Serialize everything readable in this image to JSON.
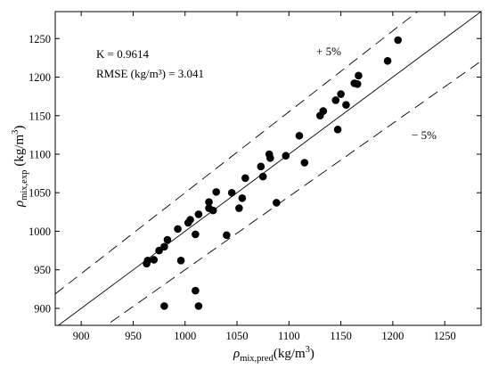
{
  "chart_data": {
    "type": "scatter",
    "x_label": {
      "symbol": "ρ",
      "sub": "mix,pred",
      "unit": "(kg/m",
      "unit_exp": "3",
      "unit_close": ")"
    },
    "y_label": {
      "symbol": "ρ",
      "sub": "mix,exp",
      "unit": "(kg/m",
      "unit_exp": "3",
      "unit_close": ")"
    },
    "xlim": [
      875,
      1285
    ],
    "ylim": [
      878,
      1285
    ],
    "x_ticks": [
      900,
      950,
      1000,
      1050,
      1100,
      1150,
      1200,
      1250
    ],
    "y_ticks": [
      900,
      950,
      1000,
      1050,
      1100,
      1150,
      1200,
      1250
    ],
    "x_tick_labels": [
      "900",
      "950",
      "1000",
      "1050",
      "1100",
      "1150",
      "1200",
      "1250"
    ],
    "y_tick_labels": [
      "900",
      "950",
      "1000",
      "1050",
      "1100",
      "1150",
      "1200",
      "1250"
    ],
    "grid": false,
    "stats": {
      "k": "K = 0.9614",
      "rmse": "RMSE (kg/m³) = 3.041"
    },
    "bands": {
      "plus_label": "+ 5%",
      "minus_label": "− 5%",
      "percent": 5
    },
    "points": [
      {
        "x": 963,
        "y": 958
      },
      {
        "x": 964,
        "y": 962
      },
      {
        "x": 970,
        "y": 963
      },
      {
        "x": 975,
        "y": 975
      },
      {
        "x": 980,
        "y": 980
      },
      {
        "x": 983,
        "y": 989
      },
      {
        "x": 980,
        "y": 903
      },
      {
        "x": 993,
        "y": 1003
      },
      {
        "x": 996,
        "y": 962
      },
      {
        "x": 1003,
        "y": 1011
      },
      {
        "x": 1005,
        "y": 1015
      },
      {
        "x": 1010,
        "y": 996
      },
      {
        "x": 1010,
        "y": 923
      },
      {
        "x": 1013,
        "y": 1022
      },
      {
        "x": 1013,
        "y": 903
      },
      {
        "x": 1023,
        "y": 1038
      },
      {
        "x": 1023,
        "y": 1030
      },
      {
        "x": 1027,
        "y": 1027
      },
      {
        "x": 1030,
        "y": 1051
      },
      {
        "x": 1040,
        "y": 995
      },
      {
        "x": 1045,
        "y": 1050
      },
      {
        "x": 1052,
        "y": 1030
      },
      {
        "x": 1055,
        "y": 1043
      },
      {
        "x": 1058,
        "y": 1069
      },
      {
        "x": 1073,
        "y": 1084
      },
      {
        "x": 1075,
        "y": 1071
      },
      {
        "x": 1081,
        "y": 1100
      },
      {
        "x": 1082,
        "y": 1095
      },
      {
        "x": 1088,
        "y": 1037
      },
      {
        "x": 1097,
        "y": 1098
      },
      {
        "x": 1110,
        "y": 1124
      },
      {
        "x": 1115,
        "y": 1089
      },
      {
        "x": 1130,
        "y": 1150
      },
      {
        "x": 1133,
        "y": 1156
      },
      {
        "x": 1145,
        "y": 1170
      },
      {
        "x": 1147,
        "y": 1132
      },
      {
        "x": 1150,
        "y": 1178
      },
      {
        "x": 1155,
        "y": 1164
      },
      {
        "x": 1163,
        "y": 1192
      },
      {
        "x": 1166,
        "y": 1191
      },
      {
        "x": 1167,
        "y": 1202
      },
      {
        "x": 1195,
        "y": 1221
      },
      {
        "x": 1205,
        "y": 1248
      }
    ]
  }
}
